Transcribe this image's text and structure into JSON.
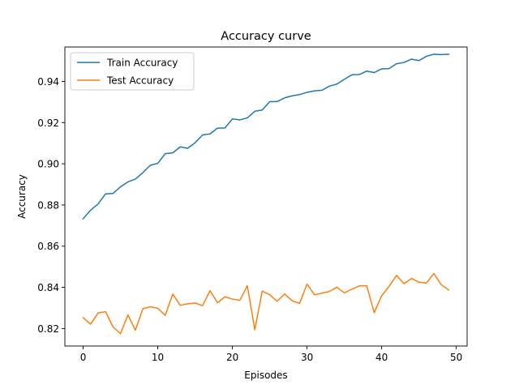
{
  "chart_data": {
    "type": "line",
    "title": "Accuracy curve",
    "xlabel": "Episodes",
    "ylabel": "Accuracy",
    "xlim": [
      -2.45,
      51.45
    ],
    "ylim": [
      0.8115,
      0.9567
    ],
    "xticks": [
      0,
      10,
      20,
      30,
      40,
      50
    ],
    "yticks": [
      0.82,
      0.84,
      0.86,
      0.88,
      0.9,
      0.92,
      0.94
    ],
    "ytick_labels": [
      "0.82",
      "0.84",
      "0.86",
      "0.88",
      "0.90",
      "0.92",
      "0.94"
    ],
    "legend_position": "upper-left",
    "grid": false,
    "x": [
      0,
      1,
      2,
      3,
      4,
      5,
      6,
      7,
      8,
      9,
      10,
      11,
      12,
      13,
      14,
      15,
      16,
      17,
      18,
      19,
      20,
      21,
      22,
      23,
      24,
      25,
      26,
      27,
      28,
      29,
      30,
      31,
      32,
      33,
      34,
      35,
      36,
      37,
      38,
      39,
      40,
      41,
      42,
      43,
      44,
      45,
      46,
      47,
      48,
      49
    ],
    "series": [
      {
        "name": "Train Accuracy",
        "color": "#1f77b4",
        "values": [
          0.8733,
          0.8775,
          0.8805,
          0.8854,
          0.8856,
          0.8888,
          0.8912,
          0.8926,
          0.8957,
          0.8993,
          0.9002,
          0.9049,
          0.9053,
          0.9082,
          0.9075,
          0.9102,
          0.914,
          0.9145,
          0.9173,
          0.9174,
          0.9218,
          0.9213,
          0.9223,
          0.9255,
          0.9261,
          0.9302,
          0.9302,
          0.932,
          0.933,
          0.9336,
          0.9347,
          0.9354,
          0.9357,
          0.9377,
          0.9387,
          0.941,
          0.9432,
          0.9433,
          0.945,
          0.9443,
          0.9461,
          0.9462,
          0.9486,
          0.9492,
          0.9508,
          0.9501,
          0.9522,
          0.9532,
          0.953,
          0.9532
        ]
      },
      {
        "name": "Test Accuracy",
        "color": "#ff7f0e",
        "values": [
          0.8253,
          0.8221,
          0.8276,
          0.8282,
          0.8208,
          0.8175,
          0.8266,
          0.8192,
          0.8296,
          0.8306,
          0.8298,
          0.8264,
          0.8367,
          0.8313,
          0.832,
          0.8324,
          0.8311,
          0.8384,
          0.8325,
          0.8354,
          0.8343,
          0.8337,
          0.8408,
          0.8194,
          0.8382,
          0.8364,
          0.8332,
          0.8368,
          0.8335,
          0.8322,
          0.8416,
          0.8364,
          0.8372,
          0.838,
          0.8401,
          0.8373,
          0.8391,
          0.8407,
          0.8408,
          0.8277,
          0.8359,
          0.8405,
          0.8458,
          0.8418,
          0.8443,
          0.8425,
          0.8421,
          0.8467,
          0.8412,
          0.8387
        ]
      }
    ]
  }
}
